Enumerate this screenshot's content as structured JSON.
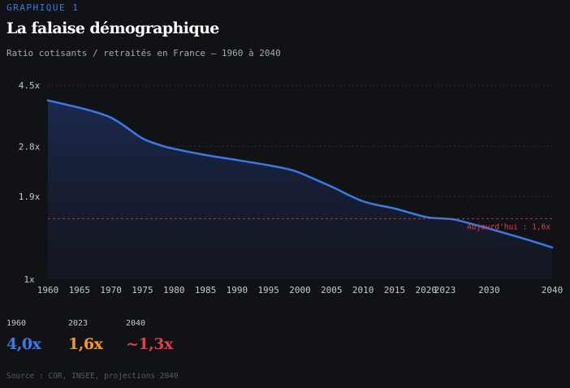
{
  "header": {
    "kicker": "GRAPHIQUE 1",
    "title": "La falaise démographique",
    "subtitle": "Ratio cotisants / retraités en France — 1960 à 2040"
  },
  "colors": {
    "background": "#111216",
    "line": "#3a7be6",
    "reference": "#e0404a",
    "stat_1960": "#3a7be6",
    "stat_2023": "#f59a23",
    "stat_2040": "#e0404a"
  },
  "chart_data": {
    "type": "area",
    "title": "La falaise démographique",
    "subtitle": "Ratio cotisants / retraités en France — 1960 à 2040",
    "x": [
      1960,
      1965,
      1968,
      1970,
      1972,
      1975,
      1978,
      1980,
      1985,
      1990,
      1995,
      1998,
      2000,
      2005,
      2010,
      2015,
      2020,
      2023,
      2025,
      2030,
      2035,
      2040
    ],
    "series": [
      {
        "values": [
          4.0,
          3.78,
          3.63,
          3.5,
          3.3,
          2.98,
          2.82,
          2.75,
          2.62,
          2.52,
          2.42,
          2.35,
          2.28,
          2.05,
          1.83,
          1.73,
          1.62,
          1.6,
          1.58,
          1.48,
          1.38,
          1.28
        ]
      }
    ],
    "xticks": [
      "1960",
      "1965",
      "1970",
      "1975",
      "1980",
      "1985",
      "1990",
      "1995",
      "2000",
      "2005",
      "2010",
      "2015",
      "2020",
      "2023",
      "2030",
      "2040"
    ],
    "yticks": [
      "4.5x",
      "2.8x",
      "1.9x",
      "1x"
    ],
    "ytick_values": [
      4.5,
      2.8,
      1.9,
      1
    ],
    "y_scale": "log",
    "ylim": [
      1,
      4.5
    ],
    "xlim": [
      1960,
      2040
    ],
    "reference_line": {
      "value": 1.6,
      "label": "Aujourd'hui : 1,6x"
    },
    "grid": "horizontal dashed",
    "legend": "none"
  },
  "stats": [
    {
      "year": "1960",
      "value": "4,0x"
    },
    {
      "year": "2023",
      "value": "1,6x"
    },
    {
      "year": "2040",
      "value": "~1,3x"
    }
  ],
  "source": "Source : COR, INSEE, projections 2040"
}
